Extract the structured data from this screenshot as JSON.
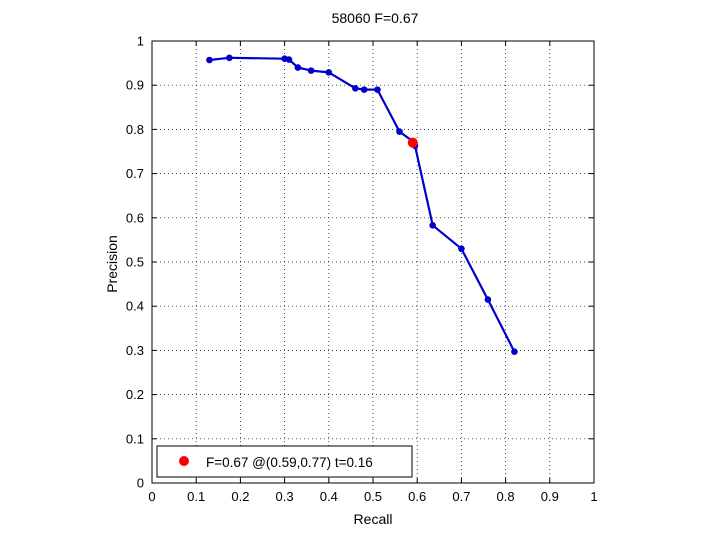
{
  "chart_data": {
    "type": "line",
    "title": "58060 F=0.67",
    "xlabel": "Recall",
    "ylabel": "Precision",
    "xlim": [
      0,
      1
    ],
    "ylim": [
      0,
      1
    ],
    "grid": true,
    "x_ticks": [
      "0",
      "0.1",
      "0.2",
      "0.3",
      "0.4",
      "0.5",
      "0.6",
      "0.7",
      "0.8",
      "0.9",
      "1"
    ],
    "y_ticks": [
      "0",
      "0.1",
      "0.2",
      "0.3",
      "0.4",
      "0.5",
      "0.6",
      "0.7",
      "0.8",
      "0.9",
      "1"
    ],
    "series": [
      {
        "color": "#0000cc",
        "x": [
          0.13,
          0.175,
          0.3,
          0.31,
          0.33,
          0.36,
          0.4,
          0.46,
          0.48,
          0.51,
          0.56,
          0.59,
          0.595,
          0.635,
          0.7,
          0.76,
          0.82
        ],
        "y": [
          0.957,
          0.962,
          0.96,
          0.958,
          0.94,
          0.933,
          0.929,
          0.893,
          0.89,
          0.89,
          0.795,
          0.773,
          0.763,
          0.583,
          0.53,
          0.415,
          0.297
        ]
      }
    ],
    "best_point": {
      "x": 0.59,
      "y": 0.77,
      "color": "#ff0000"
    },
    "legend": {
      "text": "F=0.67 @(0.59,0.77) t=0.16",
      "location": "bottom-left"
    }
  }
}
